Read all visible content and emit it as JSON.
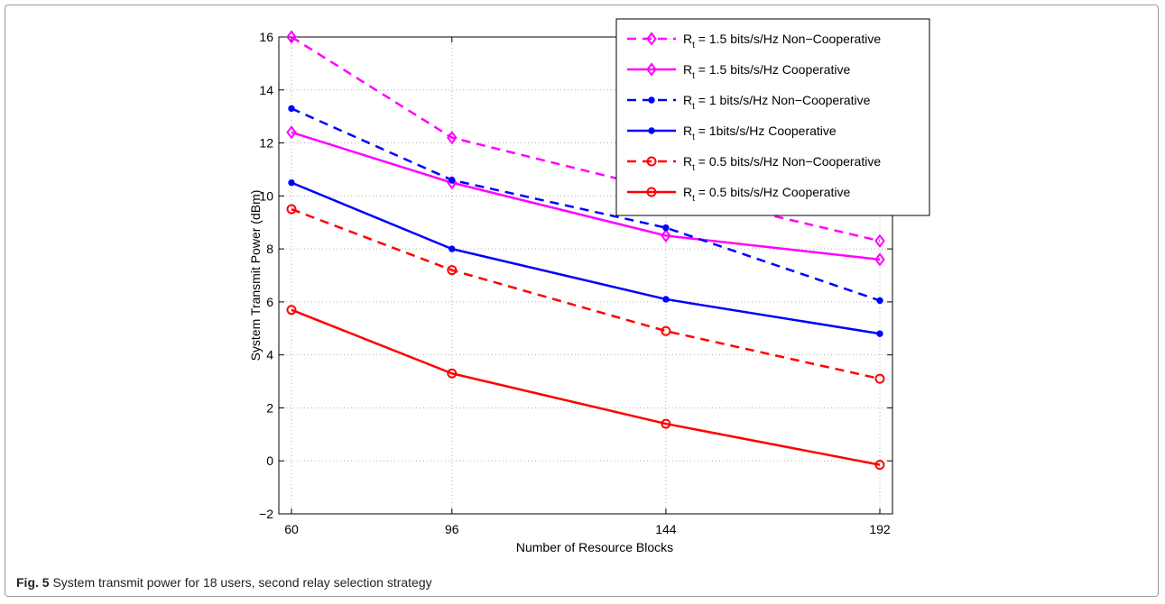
{
  "caption": {
    "label": "Fig. 5",
    "text": "System transmit power for 18 users, second relay selection strategy"
  },
  "chart_data": {
    "type": "line",
    "x": [
      60,
      96,
      144,
      192
    ],
    "x_ticks": [
      "60",
      "96",
      "144",
      "192"
    ],
    "y_ticks": [
      "−2",
      "0",
      "2",
      "4",
      "6",
      "8",
      "10",
      "12",
      "14",
      "16"
    ],
    "ylim": [
      -2,
      16
    ],
    "xlabel": "Number of Resource Blocks",
    "ylabel": "System Transmit Power (dBm)",
    "grid": true,
    "legend_position": "top-right",
    "series": [
      {
        "name_main": "R",
        "name_sub": "t",
        "name_rest": " = 1.5 bits/s/Hz Non−Cooperative",
        "color": "#ff00ff",
        "dash": "dashed",
        "marker": "diamond",
        "values": [
          16.0,
          12.2,
          10.2,
          8.3
        ]
      },
      {
        "name_main": "R",
        "name_sub": "t",
        "name_rest": " = 1.5 bits/s/Hz Cooperative",
        "color": "#ff00ff",
        "dash": "solid",
        "marker": "diamond",
        "values": [
          12.4,
          10.5,
          8.5,
          7.6
        ]
      },
      {
        "name_main": "R",
        "name_sub": "t",
        "name_rest": " = 1 bits/s/Hz Non−Cooperative",
        "color": "#0000ff",
        "dash": "dashed",
        "marker": "dot",
        "values": [
          13.3,
          10.6,
          8.8,
          6.05
        ]
      },
      {
        "name_main": "R",
        "name_sub": "t",
        "name_rest": " = 1bits/s/Hz Cooperative",
        "color": "#0000ff",
        "dash": "solid",
        "marker": "dot",
        "values": [
          10.5,
          8.0,
          6.1,
          4.8
        ]
      },
      {
        "name_main": "R",
        "name_sub": "t",
        "name_rest": " = 0.5 bits/s/Hz Non−Cooperative",
        "color": "#ff0000",
        "dash": "dashed",
        "marker": "circle",
        "values": [
          9.5,
          7.2,
          4.9,
          3.1
        ]
      },
      {
        "name_main": "R",
        "name_sub": "t",
        "name_rest": " = 0.5 bits/s/Hz Cooperative",
        "color": "#ff0000",
        "dash": "solid",
        "marker": "circle",
        "values": [
          5.7,
          3.3,
          1.4,
          -0.15
        ]
      }
    ]
  }
}
